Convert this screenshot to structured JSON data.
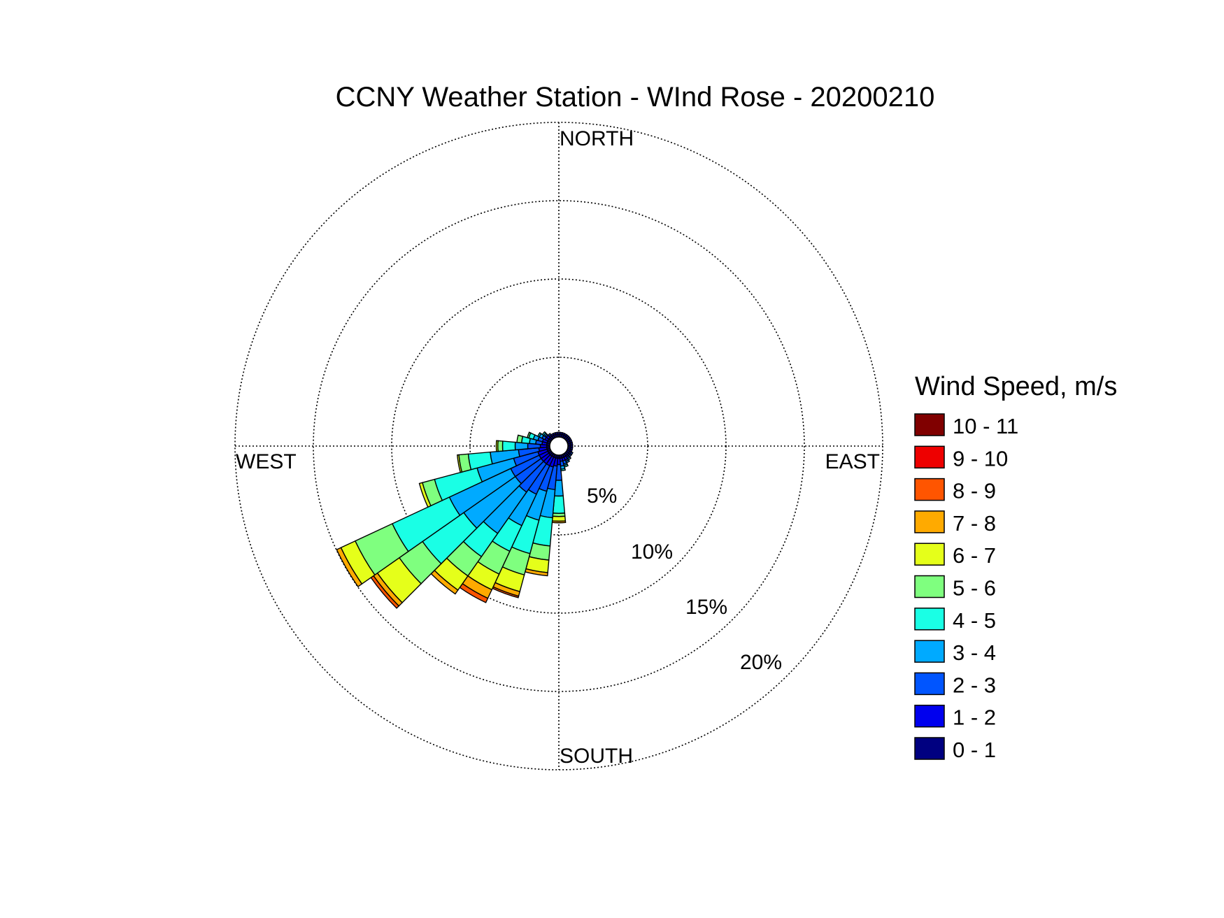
{
  "chart_data": {
    "type": "wind-rose",
    "title": "CCNY Weather Station - WInd Rose - 20200210",
    "directions": {
      "north": "NORTH",
      "south": "SOUTH",
      "east": "EAST",
      "west": "WEST"
    },
    "radial_axis": {
      "unit": "%",
      "max": 20,
      "rings": [
        5,
        10,
        15,
        20
      ],
      "ring_labels": [
        "5%",
        "10%",
        "15%",
        "20%"
      ]
    },
    "legend": {
      "title": "Wind Speed, m/s",
      "bins": [
        {
          "label": "10 - 11",
          "color": "#800000"
        },
        {
          "label": "9 - 10",
          "color": "#ee0000"
        },
        {
          "label": "8 - 9",
          "color": "#ff5500"
        },
        {
          "label": "7 - 8",
          "color": "#ffaa00"
        },
        {
          "label": "6 - 7",
          "color": "#e5ff1a"
        },
        {
          "label": "5 - 6",
          "color": "#7fff7f"
        },
        {
          "label": "4 - 5",
          "color": "#1affe5"
        },
        {
          "label": "3 - 4",
          "color": "#00aaff"
        },
        {
          "label": "2 - 3",
          "color": "#0055ff"
        },
        {
          "label": "1 - 2",
          "color": "#0000ee"
        },
        {
          "label": "0 - 1",
          "color": "#000080"
        }
      ]
    },
    "sector_width_deg": 10,
    "series_note_order": [
      "0-1",
      "1-2",
      "2-3",
      "3-4",
      "4-5",
      "5-6",
      "6-7",
      "7-8",
      "8-9",
      "9-10",
      "10-11"
    ],
    "sectors": [
      {
        "direction_deg": 180,
        "values": [
          0.2,
          0.4,
          1.0,
          1.0,
          1.1,
          0.2,
          0.3,
          0.1,
          0,
          0,
          0
        ]
      },
      {
        "direction_deg": 190,
        "values": [
          0.2,
          0.5,
          1.5,
          1.8,
          1.8,
          0.9,
          0.8,
          0.2,
          0,
          0,
          0
        ]
      },
      {
        "direction_deg": 200,
        "values": [
          0.2,
          0.6,
          1.6,
          1.9,
          2.2,
          1.4,
          1.1,
          0.3,
          0.1,
          0,
          0
        ]
      },
      {
        "direction_deg": 210,
        "values": [
          0.2,
          0.6,
          2.0,
          2.2,
          1.8,
          1.6,
          1.1,
          0.6,
          0.3,
          0,
          0
        ]
      },
      {
        "direction_deg": 220,
        "values": [
          0.2,
          0.6,
          2.2,
          3.2,
          1.8,
          1.5,
          1.1,
          0.3,
          0,
          0,
          0
        ]
      },
      {
        "direction_deg": 230,
        "values": [
          0.2,
          0.6,
          2.0,
          4.0,
          3.2,
          1.8,
          1.7,
          0.3,
          0.2,
          0,
          0
        ]
      },
      {
        "direction_deg": 240,
        "values": [
          0.2,
          0.6,
          2.0,
          4.3,
          4.0,
          2.6,
          1.0,
          0.3,
          0,
          0,
          0
        ]
      },
      {
        "direction_deg": 250,
        "values": [
          0.2,
          0.6,
          1.6,
          2.4,
          2.8,
          0.8,
          0.2,
          0,
          0,
          0,
          0
        ]
      },
      {
        "direction_deg": 260,
        "values": [
          0.2,
          0.5,
          1.3,
          1.8,
          1.4,
          0.6,
          0.1,
          0,
          0,
          0,
          0
        ]
      },
      {
        "direction_deg": 270,
        "values": [
          0.2,
          0.4,
          0.8,
          0.8,
          0.8,
          0.3,
          0.1,
          0,
          0,
          0,
          0
        ]
      },
      {
        "direction_deg": 280,
        "values": [
          0.2,
          0.3,
          0.4,
          0.4,
          0.5,
          0.3,
          0,
          0,
          0,
          0,
          0
        ]
      },
      {
        "direction_deg": 290,
        "values": [
          0.2,
          0.3,
          0.3,
          0.3,
          0.3,
          0.1,
          0,
          0,
          0,
          0,
          0
        ]
      },
      {
        "direction_deg": 300,
        "values": [
          0.2,
          0.2,
          0.2,
          0.2,
          0.1,
          0,
          0,
          0,
          0,
          0,
          0
        ]
      },
      {
        "direction_deg": 310,
        "values": [
          0.2,
          0.2,
          0.1,
          0.1,
          0.1,
          0,
          0,
          0,
          0,
          0,
          0
        ]
      },
      {
        "direction_deg": 170,
        "values": [
          0.2,
          0.2,
          0.3,
          0.2,
          0.1,
          0,
          0,
          0,
          0,
          0,
          0
        ]
      },
      {
        "direction_deg": 160,
        "values": [
          0.2,
          0.2,
          0.2,
          0.1,
          0.1,
          0,
          0,
          0,
          0,
          0,
          0
        ]
      },
      {
        "direction_deg": 150,
        "values": [
          0.2,
          0.2,
          0.1,
          0.1,
          0,
          0,
          0,
          0,
          0,
          0,
          0
        ]
      },
      {
        "direction_deg": 140,
        "values": [
          0.2,
          0.1,
          0.1,
          0.1,
          0,
          0,
          0,
          0,
          0,
          0,
          0
        ]
      },
      {
        "direction_deg": 130,
        "values": [
          0.2,
          0.1,
          0.1,
          0,
          0,
          0,
          0,
          0,
          0,
          0,
          0
        ]
      },
      {
        "direction_deg": 120,
        "values": [
          0.2,
          0.1,
          0.1,
          0,
          0,
          0,
          0,
          0,
          0,
          0,
          0
        ]
      },
      {
        "direction_deg": 110,
        "values": [
          0.2,
          0.1,
          0,
          0,
          0,
          0,
          0,
          0,
          0,
          0,
          0
        ]
      },
      {
        "direction_deg": 100,
        "values": [
          0.2,
          0.1,
          0,
          0,
          0,
          0,
          0,
          0,
          0,
          0,
          0
        ]
      },
      {
        "direction_deg": 90,
        "values": [
          0.2,
          0.1,
          0,
          0,
          0,
          0,
          0,
          0,
          0,
          0,
          0
        ]
      },
      {
        "direction_deg": 80,
        "values": [
          0.2,
          0.1,
          0,
          0,
          0,
          0,
          0,
          0,
          0,
          0,
          0
        ]
      },
      {
        "direction_deg": 70,
        "values": [
          0.2,
          0.1,
          0,
          0,
          0,
          0,
          0,
          0,
          0,
          0,
          0
        ]
      },
      {
        "direction_deg": 60,
        "values": [
          0.2,
          0.1,
          0,
          0,
          0,
          0,
          0,
          0,
          0,
          0,
          0
        ]
      },
      {
        "direction_deg": 50,
        "values": [
          0.2,
          0.1,
          0,
          0,
          0,
          0,
          0,
          0,
          0,
          0,
          0
        ]
      },
      {
        "direction_deg": 40,
        "values": [
          0.2,
          0.1,
          0,
          0,
          0,
          0,
          0,
          0,
          0,
          0,
          0
        ]
      },
      {
        "direction_deg": 30,
        "values": [
          0.2,
          0.1,
          0,
          0,
          0,
          0,
          0,
          0,
          0,
          0,
          0
        ]
      },
      {
        "direction_deg": 20,
        "values": [
          0.2,
          0.1,
          0,
          0,
          0,
          0,
          0,
          0,
          0,
          0,
          0
        ]
      },
      {
        "direction_deg": 10,
        "values": [
          0.2,
          0.1,
          0,
          0,
          0,
          0,
          0,
          0,
          0,
          0,
          0
        ]
      },
      {
        "direction_deg": 0,
        "values": [
          0.2,
          0.1,
          0,
          0,
          0,
          0,
          0,
          0,
          0,
          0,
          0
        ]
      },
      {
        "direction_deg": 320,
        "values": [
          0.2,
          0.1,
          0.1,
          0,
          0,
          0,
          0,
          0,
          0,
          0,
          0
        ]
      },
      {
        "direction_deg": 330,
        "values": [
          0.2,
          0.1,
          0,
          0,
          0,
          0,
          0,
          0,
          0,
          0,
          0
        ]
      },
      {
        "direction_deg": 340,
        "values": [
          0.2,
          0.1,
          0,
          0,
          0,
          0,
          0,
          0,
          0,
          0,
          0
        ]
      },
      {
        "direction_deg": 350,
        "values": [
          0.2,
          0.1,
          0,
          0,
          0,
          0,
          0,
          0,
          0,
          0,
          0
        ]
      }
    ]
  }
}
